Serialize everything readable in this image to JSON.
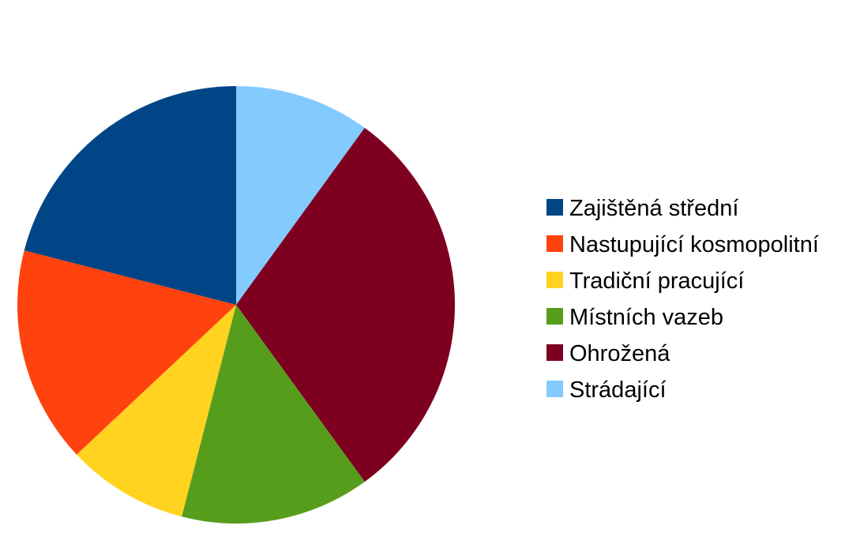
{
  "chart_data": {
    "type": "pie",
    "title": "",
    "legend_position": "right",
    "categories": [
      "Zajištěná střední",
      "Nastupující kosmopolitní",
      "Tradiční pracující",
      "Místních vazeb",
      "Ohrožená",
      "Strádající"
    ],
    "values": [
      21,
      16,
      9,
      14,
      30,
      10
    ],
    "colors": [
      "#004586",
      "#ff420e",
      "#ffd320",
      "#579d1c",
      "#7e0021",
      "#83caff"
    ],
    "start_series": "Strádající",
    "direction": "clockwise",
    "start_angle": "12 o'clock"
  }
}
